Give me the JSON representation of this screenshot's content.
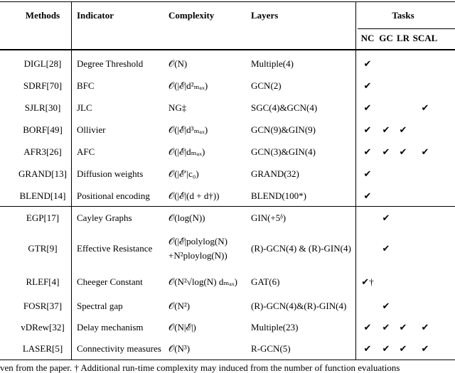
{
  "header": {
    "methods": "Methods",
    "indicator": "Indicator",
    "complexity": "Complexity",
    "layers": "Layers",
    "tasks": "Tasks",
    "task_names": [
      "NC",
      "GC",
      "LR",
      "SCAL"
    ]
  },
  "groups": [
    [
      [
        "DIGL[28]",
        "Degree Threshold",
        "𝒪(N)",
        "Multiple(4)",
        [
          "✔",
          null,
          null,
          null
        ]
      ],
      [
        "SDRF[70]",
        "BFC",
        "𝒪(|ℰ|d²ₘₐₓ)",
        "GCN(2)",
        [
          "✔",
          null,
          null,
          null
        ]
      ],
      [
        "SJLR[30]",
        "JLC",
        "NG‡",
        "SGC(4)&GCN(4)",
        [
          "✔",
          null,
          null,
          "✔"
        ]
      ],
      [
        "BORF[49]",
        "Ollivier",
        "𝒪(|ℰ|d³ₘₐₓ)",
        "GCN(9)&GIN(9)",
        [
          "✔",
          "✔",
          "✔",
          null
        ]
      ],
      [
        "AFR3[26]",
        "AFC",
        "𝒪(|ℰ|dₘₐₓ)",
        "GCN(3)&GIN(4)",
        [
          "✔",
          "✔",
          "✔",
          "✔"
        ]
      ],
      [
        "GRAND[13]",
        "Diffusion weights",
        "𝒪(|ℰ′|c₀)",
        "GRAND(32)",
        [
          "✔",
          null,
          null,
          null
        ]
      ],
      [
        "BLEND[14]",
        "Positional encoding",
        "𝒪(|ℰ|(d + d†))",
        "BLEND(100*)",
        [
          "✔",
          null,
          null,
          null
        ]
      ]
    ],
    [
      [
        "EGP[17]",
        "Cayley Graphs",
        "𝒪(log(N))",
        "GIN(+5ᵟ)",
        [
          null,
          "✔",
          null,
          null
        ]
      ],
      [
        "GTR[9]",
        "Effective Resistance",
        "𝒪(|ℰ|polylog(N)\n+N²ploylog(N))",
        "(R)-GCN(4) & (R)-GIN(4)",
        [
          null,
          "✔",
          null,
          null
        ]
      ],
      [
        "RLEF[4]",
        "Cheeger Constant",
        "𝒪(N²√log(N) dₘₐₓ)",
        "GAT(6)",
        [
          "✔†",
          null,
          null,
          null
        ]
      ],
      [
        "FOSR[37]",
        "Spectral gap",
        "𝒪(N²)",
        "(R)-GCN(4)&(R)-GIN(4)",
        [
          null,
          "✔",
          null,
          null
        ]
      ],
      [
        "vDRew[32]",
        "Delay mechanism",
        "𝒪(N|ℰ|)",
        "Multiple(23)",
        [
          "✔",
          "✔",
          "✔",
          "✔"
        ]
      ],
      [
        "LASER[5]",
        "Connectivity measures",
        "𝒪(N³)",
        "R-GCN(5)",
        [
          "✔",
          "✔",
          "✔",
          "✔"
        ]
      ]
    ]
  ],
  "footnote": "ven from the paper.  † Additional run-time complexity may induced from the number of function evaluations"
}
